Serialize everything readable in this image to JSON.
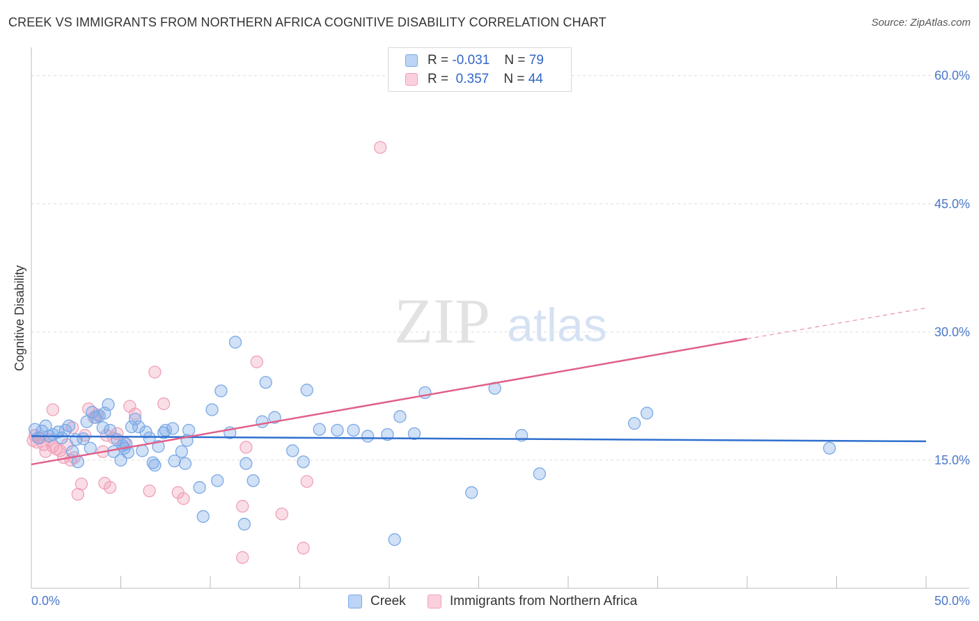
{
  "title": "CREEK VS IMMIGRANTS FROM NORTHERN AFRICA COGNITIVE DISABILITY CORRELATION CHART",
  "source": "Source: ZipAtlas.com",
  "watermark": {
    "zip": "ZIP",
    "atlas": "atlas"
  },
  "legend": {
    "rows": [
      {
        "r_label": "R =",
        "r_value": "-0.031",
        "n_label": "N =",
        "n_value": "79"
      },
      {
        "r_label": "R =",
        "r_value": "0.357",
        "n_label": "N =",
        "n_value": "44"
      }
    ]
  },
  "colors": {
    "creek": "#7aa8e6",
    "creek_line": "#2f6fce",
    "immigrants": "#f0a0b8",
    "immigrants_line": "#e0608a",
    "grid": "#dddddd",
    "tick_label": "#4a78c8"
  },
  "chart_data": {
    "type": "scatter",
    "title": "CREEK VS IMMIGRANTS FROM NORTHERN AFRICA COGNITIVE DISABILITY CORRELATION CHART",
    "xlabel": "",
    "ylabel": "Cognitive Disability",
    "xlim": [
      0,
      50
    ],
    "ylim": [
      0,
      62.5
    ],
    "x_tick_labels": [
      "0.0%",
      "50.0%"
    ],
    "y_ticks": [
      15,
      30,
      45,
      60
    ],
    "y_tick_labels": [
      "15.0%",
      "30.0%",
      "45.0%",
      "60.0%"
    ],
    "grid": true,
    "legend_position": "top-center",
    "series": [
      {
        "name": "Creek",
        "r": -0.031,
        "n": 79,
        "trend": {
          "x": [
            0,
            50
          ],
          "y": [
            17.8,
            17.2
          ]
        },
        "points": [
          [
            0.2,
            18.6
          ],
          [
            0.4,
            17.6
          ],
          [
            0.6,
            18.4
          ],
          [
            0.8,
            19.0
          ],
          [
            1.0,
            17.8
          ],
          [
            1.2,
            18.0
          ],
          [
            1.5,
            18.3
          ],
          [
            1.7,
            17.6
          ],
          [
            1.9,
            18.5
          ],
          [
            2.1,
            19.0
          ],
          [
            2.3,
            16.0
          ],
          [
            2.5,
            17.4
          ],
          [
            2.6,
            14.8
          ],
          [
            2.9,
            17.5
          ],
          [
            3.1,
            19.5
          ],
          [
            3.4,
            20.6
          ],
          [
            3.6,
            20.0
          ],
          [
            3.8,
            20.2
          ],
          [
            4.0,
            18.8
          ],
          [
            4.3,
            21.5
          ],
          [
            4.4,
            18.5
          ],
          [
            4.6,
            16.0
          ],
          [
            4.8,
            17.4
          ],
          [
            5.0,
            15.0
          ],
          [
            5.2,
            16.4
          ],
          [
            5.3,
            16.9
          ],
          [
            5.4,
            15.9
          ],
          [
            5.6,
            18.9
          ],
          [
            5.8,
            19.8
          ],
          [
            6.0,
            18.9
          ],
          [
            6.2,
            16.1
          ],
          [
            6.4,
            18.3
          ],
          [
            6.6,
            17.6
          ],
          [
            6.8,
            14.7
          ],
          [
            6.9,
            14.4
          ],
          [
            7.1,
            16.6
          ],
          [
            7.4,
            18.2
          ],
          [
            7.5,
            18.5
          ],
          [
            7.9,
            18.7
          ],
          [
            8.0,
            14.9
          ],
          [
            8.4,
            16.0
          ],
          [
            8.6,
            14.6
          ],
          [
            8.7,
            17.3
          ],
          [
            8.8,
            18.5
          ],
          [
            9.4,
            11.8
          ],
          [
            9.6,
            8.4
          ],
          [
            10.1,
            20.9
          ],
          [
            10.4,
            12.6
          ],
          [
            10.6,
            23.1
          ],
          [
            11.1,
            18.2
          ],
          [
            11.4,
            28.8
          ],
          [
            11.9,
            7.5
          ],
          [
            12.0,
            14.6
          ],
          [
            12.4,
            12.6
          ],
          [
            13.1,
            24.1
          ],
          [
            12.9,
            19.5
          ],
          [
            13.6,
            20.0
          ],
          [
            14.6,
            16.1
          ],
          [
            15.2,
            14.8
          ],
          [
            15.4,
            23.2
          ],
          [
            16.1,
            18.6
          ],
          [
            17.1,
            18.5
          ],
          [
            18.0,
            18.5
          ],
          [
            18.8,
            17.8
          ],
          [
            19.9,
            18.0
          ],
          [
            20.3,
            5.7
          ],
          [
            20.6,
            20.1
          ],
          [
            21.4,
            18.1
          ],
          [
            22.0,
            22.9
          ],
          [
            24.6,
            11.2
          ],
          [
            25.9,
            23.4
          ],
          [
            27.4,
            17.9
          ],
          [
            28.4,
            13.4
          ],
          [
            33.7,
            19.3
          ],
          [
            34.4,
            20.5
          ],
          [
            44.6,
            16.4
          ],
          [
            4.1,
            20.5
          ],
          [
            3.3,
            16.4
          ],
          [
            5.1,
            16.7
          ]
        ]
      },
      {
        "name": "Immigrants from Northern Africa",
        "r": 0.357,
        "n": 44,
        "trend": {
          "x": [
            0,
            40
          ],
          "y": [
            14.5,
            29.2
          ]
        },
        "trend_dashed": {
          "x": [
            40,
            50
          ],
          "y": [
            29.2,
            32.8
          ]
        },
        "points": [
          [
            0.1,
            17.3
          ],
          [
            0.2,
            17.9
          ],
          [
            0.3,
            17.1
          ],
          [
            0.5,
            17.6
          ],
          [
            0.7,
            16.8
          ],
          [
            0.8,
            16.0
          ],
          [
            1.0,
            17.4
          ],
          [
            1.2,
            16.6
          ],
          [
            1.4,
            16.3
          ],
          [
            1.6,
            16.1
          ],
          [
            1.8,
            15.3
          ],
          [
            2.0,
            16.8
          ],
          [
            2.2,
            15.0
          ],
          [
            2.4,
            15.3
          ],
          [
            2.6,
            11.0
          ],
          [
            2.8,
            12.2
          ],
          [
            3.0,
            17.9
          ],
          [
            3.2,
            21.0
          ],
          [
            3.5,
            20.0
          ],
          [
            3.7,
            20.3
          ],
          [
            4.0,
            16.0
          ],
          [
            4.2,
            17.9
          ],
          [
            4.4,
            11.8
          ],
          [
            4.6,
            17.6
          ],
          [
            4.8,
            18.1
          ],
          [
            5.2,
            17.0
          ],
          [
            5.5,
            21.3
          ],
          [
            5.8,
            20.4
          ],
          [
            6.6,
            11.4
          ],
          [
            6.9,
            25.3
          ],
          [
            7.4,
            21.6
          ],
          [
            8.2,
            11.2
          ],
          [
            8.5,
            10.5
          ],
          [
            11.8,
            3.6
          ],
          [
            11.8,
            9.6
          ],
          [
            12.0,
            16.5
          ],
          [
            12.6,
            26.5
          ],
          [
            14.0,
            8.7
          ],
          [
            15.2,
            4.7
          ],
          [
            15.4,
            12.5
          ],
          [
            19.5,
            51.6
          ],
          [
            1.2,
            20.9
          ],
          [
            2.3,
            18.8
          ],
          [
            4.1,
            12.3
          ]
        ]
      }
    ]
  },
  "bottom_legend": [
    "Creek",
    "Immigrants from Northern Africa"
  ]
}
